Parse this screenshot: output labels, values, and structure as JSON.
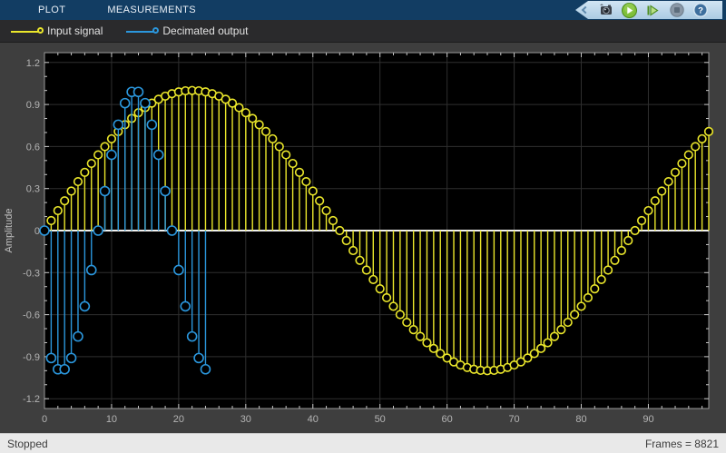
{
  "topbar": {
    "tabs": [
      {
        "label": "PLOT"
      },
      {
        "label": "MEASUREMENTS"
      }
    ],
    "toolbar_icons": [
      {
        "name": "snapshot-camera-icon"
      },
      {
        "name": "run-icon"
      },
      {
        "name": "step-forward-icon"
      },
      {
        "name": "stop-icon"
      },
      {
        "name": "help-icon"
      }
    ],
    "colors": {
      "bar": "#123d63",
      "band": "#bcd6ea"
    }
  },
  "legend": {
    "entries": [
      {
        "label": "Input signal",
        "color": "#ebe72b"
      },
      {
        "label": "Decimated output",
        "color": "#2b97dd"
      }
    ]
  },
  "status_bar": {
    "left": "Stopped",
    "right": "Frames = 8821"
  },
  "chart_data": {
    "type": "stem",
    "title": "",
    "xlabel": "",
    "ylabel": "Amplitude",
    "xlim": [
      0,
      99
    ],
    "ylim": [
      -1.27,
      1.27
    ],
    "baseline": 0,
    "grid": true,
    "x_ticks": [
      "0",
      "10",
      "20",
      "30",
      "40",
      "50",
      "60",
      "70",
      "80",
      "90"
    ],
    "x_tick_values": [
      0,
      10,
      20,
      30,
      40,
      50,
      60,
      70,
      80,
      90
    ],
    "y_ticks": [
      "-1.2",
      "-0.9",
      "-0.6",
      "-0.3",
      "0",
      "0.3",
      "0.6",
      "0.9",
      "1.2"
    ],
    "y_tick_values": [
      -1.2,
      -0.9,
      -0.6,
      -0.3,
      0,
      0.3,
      0.6,
      0.9,
      1.2
    ],
    "colors": {
      "plot_background": "#000000",
      "border": "#9a9a9a",
      "grid": "#2f2f2f",
      "tick": "#c8c8c8",
      "tick_label": "#b4b4b4",
      "axis_label": "#c0c0c0",
      "baseline": "#f0f0f0"
    },
    "series": [
      {
        "name": "Input signal",
        "color": "#ebe72b",
        "marker": "circle",
        "marker_radius": 4.3,
        "x_start": 0,
        "x_step": 1,
        "values": [
          0,
          0.0713,
          0.1423,
          0.2126,
          0.2817,
          0.3494,
          0.4154,
          0.4792,
          0.5406,
          0.5993,
          0.6549,
          0.7071,
          0.7557,
          0.8005,
          0.8412,
          0.8775,
          0.9096,
          0.937,
          0.9595,
          0.9772,
          0.9898,
          0.9975,
          1,
          0.9975,
          0.9898,
          0.9772,
          0.9595,
          0.937,
          0.9096,
          0.8775,
          0.8412,
          0.8005,
          0.7557,
          0.7071,
          0.6549,
          0.5993,
          0.5406,
          0.4792,
          0.4154,
          0.3494,
          0.2817,
          0.2126,
          0.1423,
          0.0713,
          0,
          -0.0713,
          -0.1423,
          -0.2126,
          -0.2817,
          -0.3494,
          -0.4154,
          -0.4792,
          -0.5406,
          -0.5993,
          -0.6549,
          -0.7071,
          -0.7557,
          -0.8005,
          -0.8412,
          -0.8775,
          -0.9096,
          -0.937,
          -0.9595,
          -0.9772,
          -0.9898,
          -0.9975,
          -1,
          -0.9975,
          -0.9898,
          -0.9772,
          -0.9595,
          -0.937,
          -0.9096,
          -0.8775,
          -0.8412,
          -0.8005,
          -0.7557,
          -0.7071,
          -0.6549,
          -0.5993,
          -0.5406,
          -0.4792,
          -0.4154,
          -0.3494,
          -0.2817,
          -0.2126,
          -0.1423,
          -0.0713,
          0,
          0.0713,
          0.1423,
          0.2126,
          0.2817,
          0.3494,
          0.4154,
          0.4792,
          0.5406,
          0.5993,
          0.6549,
          0.7071
        ]
      },
      {
        "name": "Decimated output",
        "color": "#2b97dd",
        "marker": "circle",
        "marker_radius": 5,
        "x_start": 0,
        "x_step": 1,
        "values": [
          0,
          -0.9096,
          -0.9898,
          -0.9898,
          -0.9096,
          -0.7557,
          -0.5406,
          -0.2817,
          0,
          0.2817,
          0.5406,
          0.7557,
          0.9096,
          0.9898,
          0.9898,
          0.9096,
          0.7557,
          0.5406,
          0.2817,
          0,
          -0.2817,
          -0.5406,
          -0.7557,
          -0.9096,
          -0.9898
        ]
      }
    ]
  }
}
